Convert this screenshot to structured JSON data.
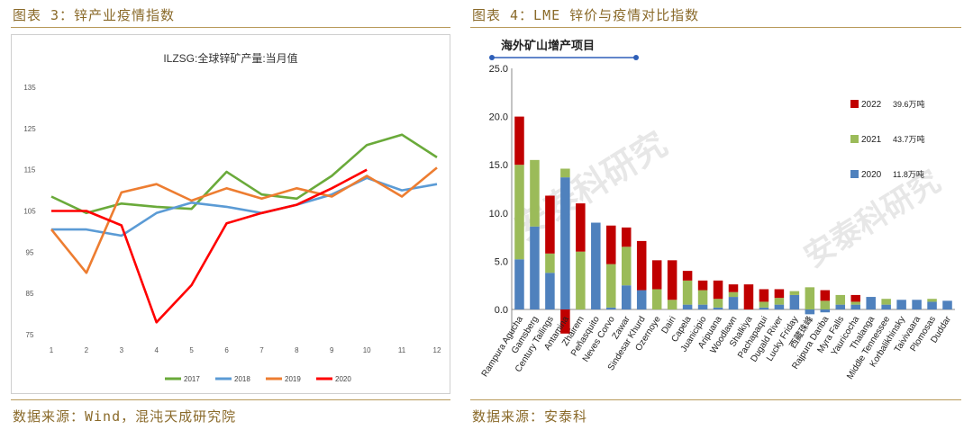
{
  "left": {
    "caption": "图表 3：锌产业疫情指数",
    "source": "数据来源：Wind，混沌天成研究院"
  },
  "right": {
    "caption": "图表 4：LME 锌价与疫情对比指数",
    "source": "数据来源：安泰科"
  },
  "chart_data": [
    {
      "type": "line",
      "title": "ILZSG:全球锌矿产量:当月值",
      "x": [
        1,
        2,
        3,
        4,
        5,
        6,
        7,
        8,
        9,
        10,
        11,
        12
      ],
      "ylim": [
        75,
        135
      ],
      "yticks": [
        75,
        85,
        95,
        105,
        115,
        125,
        135
      ],
      "grid": false,
      "legend_position": "bottom",
      "series": [
        {
          "name": "2017",
          "color": "#6aaa3a",
          "values": [
            108.5,
            104.5,
            106.8,
            106.0,
            105.5,
            114.5,
            109.0,
            108.0,
            113.5,
            121.0,
            123.5,
            118.0
          ]
        },
        {
          "name": "2018",
          "color": "#5b9bd5",
          "values": [
            100.5,
            100.5,
            99.0,
            104.5,
            107.0,
            106.0,
            104.5,
            106.5,
            109.0,
            113.0,
            110.0,
            111.5
          ]
        },
        {
          "name": "2019",
          "color": "#ed7d31",
          "values": [
            100.5,
            90.0,
            109.5,
            111.5,
            107.5,
            110.5,
            108.0,
            110.5,
            108.5,
            113.5,
            108.5,
            115.5
          ]
        },
        {
          "name": "2020",
          "color": "#ff0000",
          "values": [
            105.0,
            105.0,
            101.5,
            78.0,
            87.0,
            102.0,
            104.5,
            106.5,
            110.5,
            115.0,
            null,
            null
          ]
        }
      ]
    },
    {
      "type": "bar",
      "stacked": true,
      "title": "海外矿山增产项目",
      "ylim": [
        0,
        25
      ],
      "yticks": [
        "0.0",
        "5.0",
        "10.0",
        "15.0",
        "20.0",
        "25.0"
      ],
      "grid": false,
      "legend_position": "right",
      "categories": [
        "Rampura Agucha",
        "Gamsberg",
        "Century Tailings",
        "Antamina",
        "Zhairem",
        "Peñasquito",
        "Neves Corvo",
        "Zawar",
        "Sindesar Khurd",
        "Ozernoye",
        "Dairi",
        "Capela",
        "Juanicipio",
        "Aripuana",
        "Woodlawn",
        "Shalkiya",
        "Pachapaqui",
        "Dugald River",
        "Lucky Friday",
        "西藏珠峰",
        "Rajpura Dariba",
        "Myra Falls",
        "Yauricocha",
        "Thalanga",
        "Middle Tennessee",
        "Korbalikhinsky",
        "Taivivaara",
        "Plomosas",
        "Duddar"
      ],
      "series": [
        {
          "name": "2020",
          "label": "11.8万吨",
          "color": "#4f81bd",
          "values": [
            5.2,
            8.6,
            3.8,
            13.7,
            0,
            9.0,
            0.2,
            2.5,
            2.0,
            0,
            0,
            0.5,
            0.5,
            0.2,
            1.3,
            0,
            0.2,
            0.5,
            1.5,
            -0.5,
            -0.3,
            0.5,
            0.5,
            1.3,
            0.5,
            1.0,
            1.0,
            0.8,
            0.9
          ]
        },
        {
          "name": "2021",
          "label": "43.7万吨",
          "color": "#9bbb59",
          "values": [
            9.8,
            6.9,
            2.0,
            0.9,
            6.0,
            0,
            4.5,
            4.0,
            0,
            2.1,
            1.0,
            2.5,
            1.5,
            0.9,
            0.5,
            0,
            0.6,
            0.7,
            0.4,
            2.3,
            0.9,
            1.0,
            0.3,
            0,
            0.6,
            0,
            0,
            0.3,
            0
          ]
        },
        {
          "name": "2022",
          "label": "39.6万吨",
          "color": "#c00000",
          "values": [
            5.0,
            0,
            6.0,
            -2.5,
            5.0,
            0,
            4.0,
            2.0,
            5.1,
            3.0,
            4.1,
            1.0,
            1.0,
            1.9,
            0.8,
            2.6,
            1.3,
            0.9,
            0,
            0,
            1.1,
            0,
            0.7,
            0,
            0,
            0,
            0,
            0,
            0
          ]
        }
      ]
    }
  ]
}
